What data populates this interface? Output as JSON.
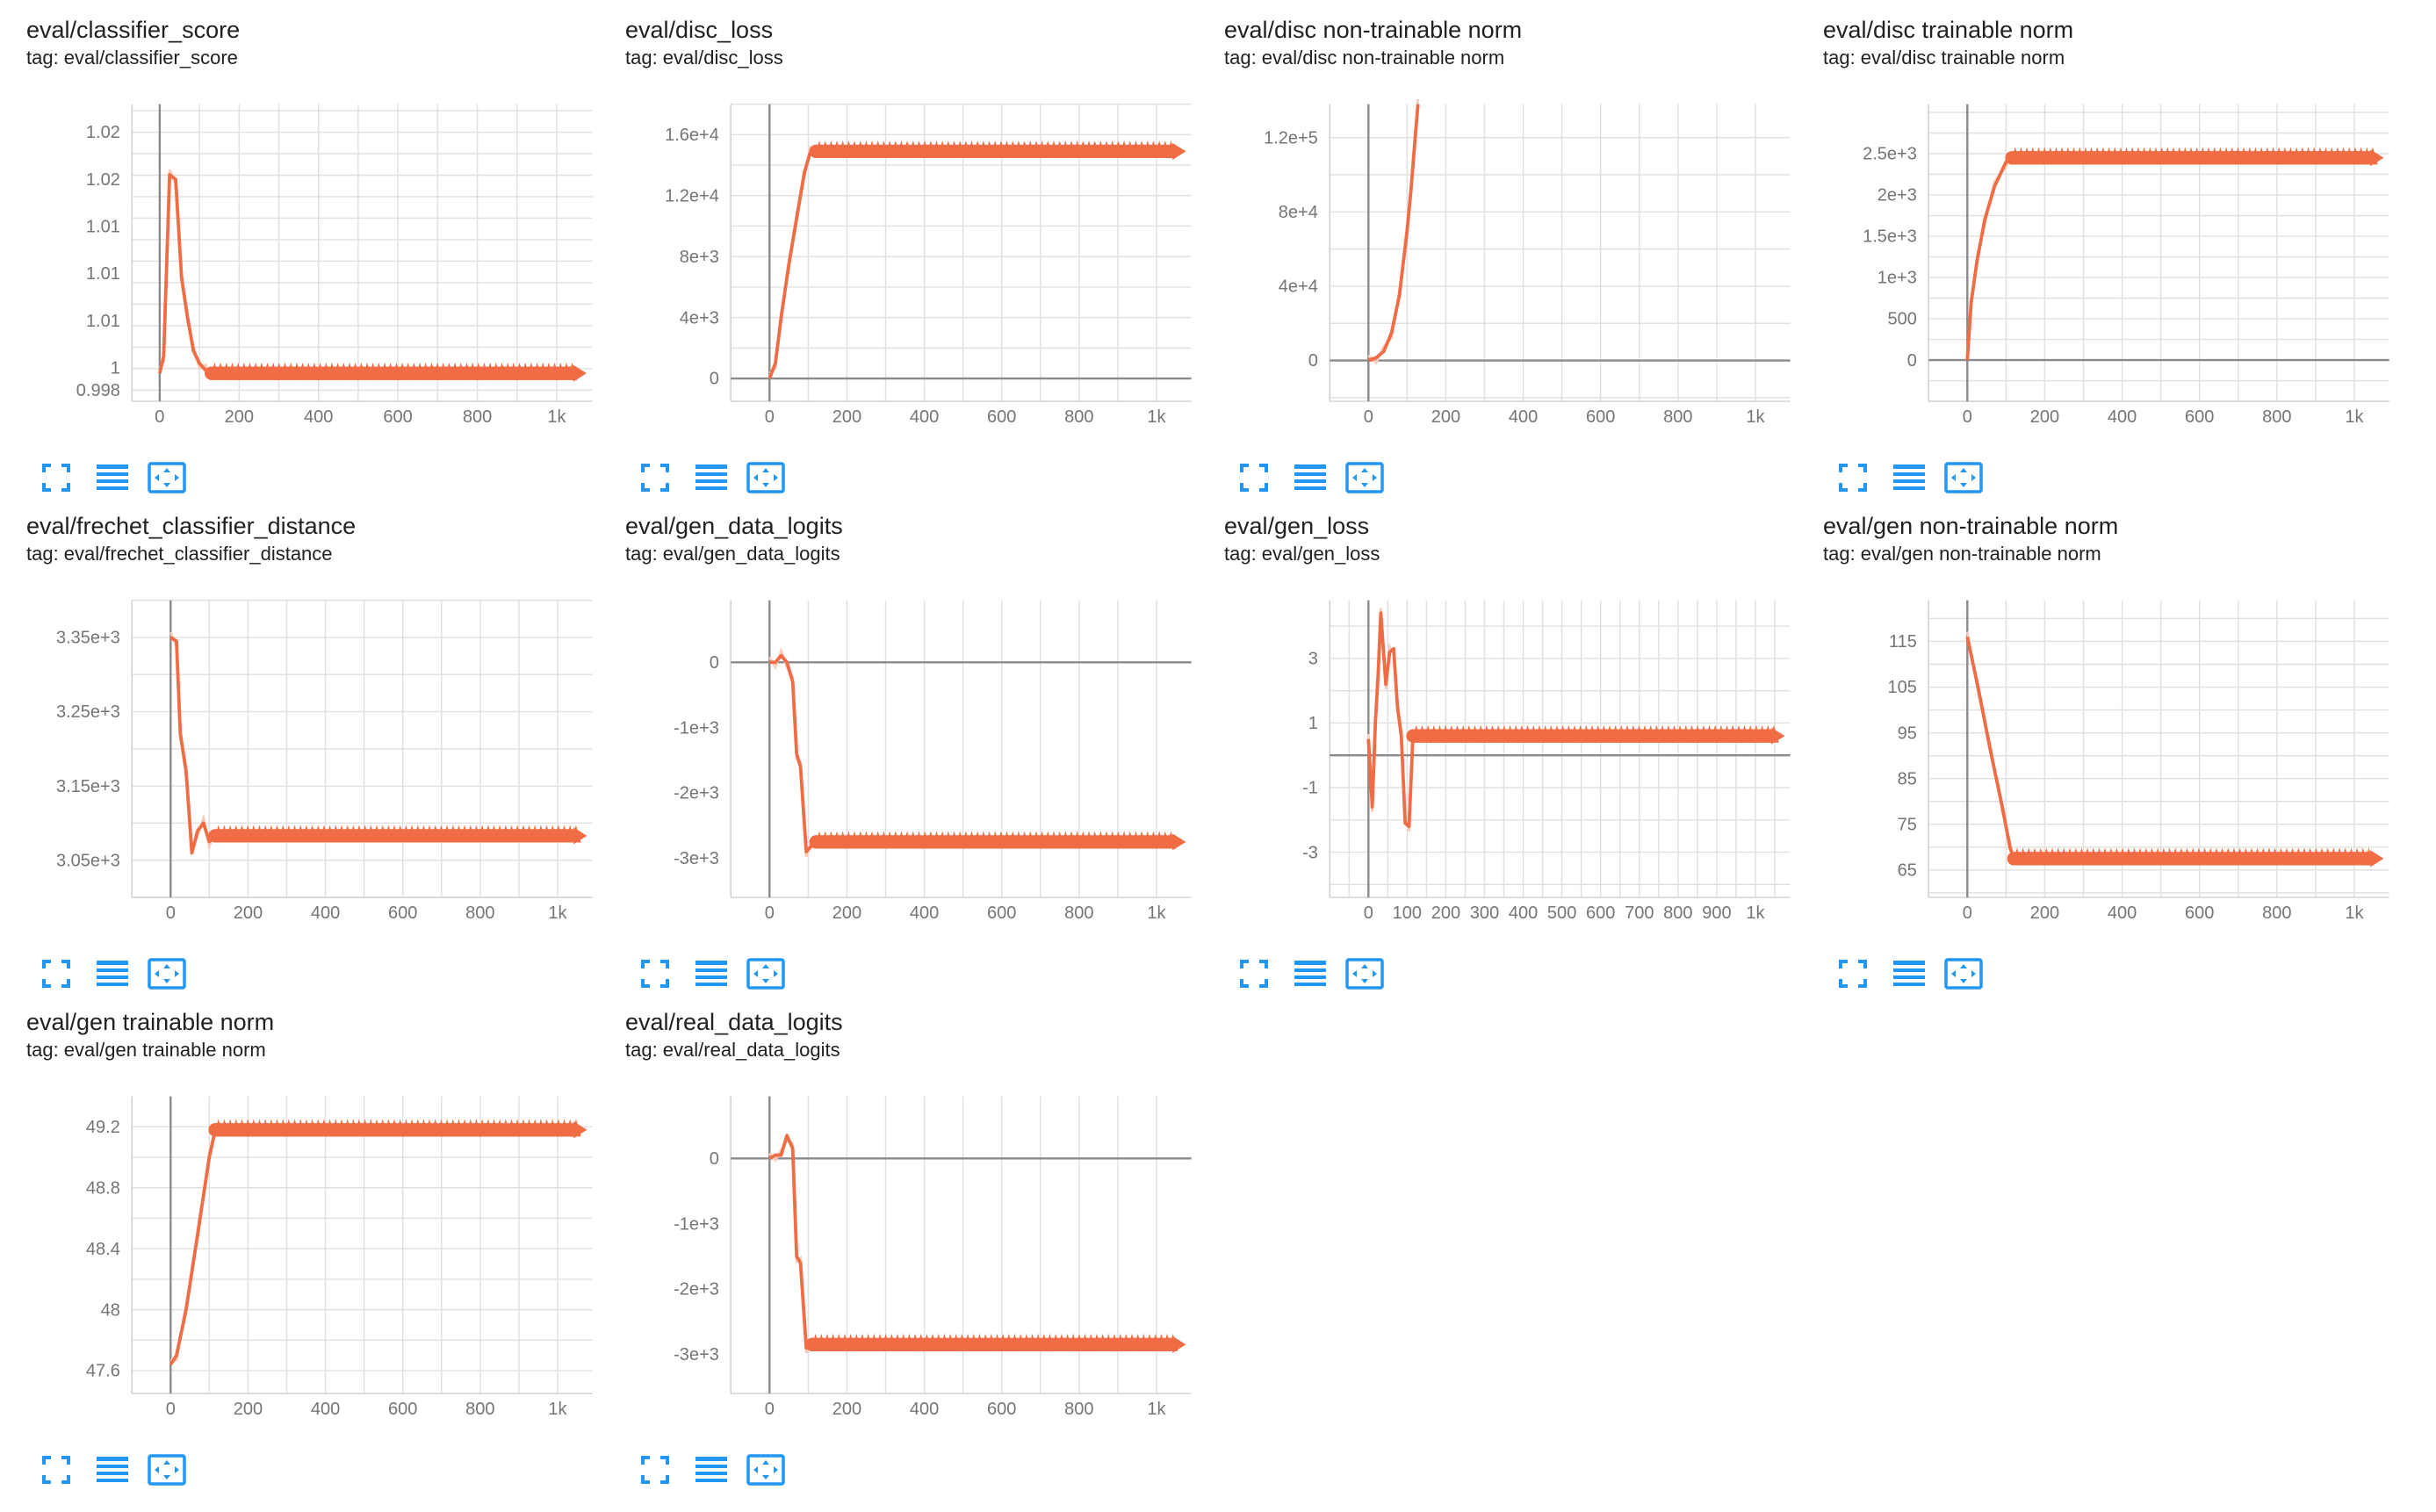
{
  "ui": {
    "accent_color": "#ef6c45",
    "smoothed_raw_color": "#f9cdbd",
    "button_color": "#2196f3",
    "buttons": [
      "fit-domain-icon",
      "data-table-icon",
      "zoom-extents-icon"
    ]
  },
  "cards": [
    {
      "title": "eval/classifier_score",
      "tag": "tag: eval/classifier_score"
    },
    {
      "title": "eval/disc_loss",
      "tag": "tag: eval/disc_loss"
    },
    {
      "title": "eval/disc non-trainable norm",
      "tag": "tag: eval/disc non-trainable norm"
    },
    {
      "title": "eval/disc trainable norm",
      "tag": "tag: eval/disc trainable norm"
    },
    {
      "title": "eval/frechet_classifier_distance",
      "tag": "tag: eval/frechet_classifier_distance"
    },
    {
      "title": "eval/gen_data_logits",
      "tag": "tag: eval/gen_data_logits"
    },
    {
      "title": "eval/gen_loss",
      "tag": "tag: eval/gen_loss"
    },
    {
      "title": "eval/gen non-trainable norm",
      "tag": "tag: eval/gen non-trainable norm"
    },
    {
      "title": "eval/gen trainable norm",
      "tag": "tag: eval/gen trainable norm"
    },
    {
      "title": "eval/real_data_logits",
      "tag": "tag: eval/real_data_logits"
    }
  ],
  "chart_data": [
    {
      "type": "line",
      "title": "eval/classifier_score",
      "x_ticks": [
        "0",
        "200",
        "400",
        "600",
        "800",
        "1k"
      ],
      "y_ticks": [
        "0.998",
        "1",
        "1.01",
        "1.01",
        "1.01",
        "1.02",
        "1.02"
      ],
      "xlim": [
        -70,
        1090
      ],
      "ylim": [
        0.997,
        1.0235
      ],
      "y_tick_values": [
        0.998,
        1.0,
        1.0042,
        1.0084,
        1.0126,
        1.0168,
        1.021
      ],
      "grid": true,
      "series": [
        {
          "x": [
            0,
            10,
            25,
            40,
            55,
            70,
            85,
            100,
            115,
            130,
            200,
            300,
            400,
            500,
            600,
            700,
            800,
            900,
            1000,
            1050
          ],
          "y": [
            0.9995,
            1.001,
            1.0172,
            1.0168,
            1.008,
            1.0045,
            1.0015,
            1.0004,
            0.9998,
            0.9995,
            0.9995,
            0.9995,
            0.9995,
            0.9995,
            0.9995,
            0.9995,
            0.9995,
            0.9995,
            0.9995,
            0.9995
          ]
        }
      ]
    },
    {
      "type": "line",
      "title": "eval/disc_loss",
      "x_ticks": [
        "0",
        "200",
        "400",
        "600",
        "800",
        "1k"
      ],
      "y_ticks": [
        "0",
        "4e+3",
        "8e+3",
        "1.2e+4",
        "1.6e+4"
      ],
      "xlim": [
        -100,
        1090
      ],
      "ylim": [
        -1500,
        18000
      ],
      "grid": true,
      "series": [
        {
          "x": [
            0,
            15,
            30,
            50,
            70,
            90,
            105,
            120,
            200,
            300,
            400,
            500,
            600,
            700,
            800,
            900,
            1000,
            1050
          ],
          "y": [
            0,
            1000,
            4000,
            7500,
            10500,
            13500,
            14800,
            14900,
            14900,
            14900,
            14900,
            14900,
            14900,
            14900,
            14900,
            14900,
            14900,
            14900
          ]
        }
      ]
    },
    {
      "type": "line",
      "title": "eval/disc non-trainable norm",
      "x_ticks": [
        "0",
        "200",
        "400",
        "600",
        "800",
        "1k"
      ],
      "y_ticks": [
        "0",
        "4e+4",
        "8e+4",
        "1.2e+5"
      ],
      "xlim": [
        -100,
        1090
      ],
      "ylim": [
        -22000,
        138000
      ],
      "grid": true,
      "series": [
        {
          "x": [
            0,
            20,
            40,
            60,
            80,
            100,
            110,
            120,
            128
          ],
          "y": [
            0,
            1500,
            5000,
            15000,
            35000,
            70000,
            92000,
            118000,
            138000
          ]
        }
      ]
    },
    {
      "type": "line",
      "title": "eval/disc trainable norm",
      "x_ticks": [
        "0",
        "200",
        "400",
        "600",
        "800",
        "1k"
      ],
      "y_ticks": [
        "0",
        "500",
        "1e+3",
        "1.5e+3",
        "2e+3",
        "2.5e+3"
      ],
      "xlim": [
        -100,
        1090
      ],
      "ylim": [
        -500,
        3100
      ],
      "grid": true,
      "series": [
        {
          "x": [
            0,
            10,
            25,
            45,
            70,
            100,
            115,
            200,
            300,
            400,
            500,
            600,
            700,
            800,
            900,
            1000,
            1050
          ],
          "y": [
            0,
            700,
            1200,
            1700,
            2100,
            2400,
            2450,
            2450,
            2450,
            2450,
            2450,
            2450,
            2450,
            2450,
            2450,
            2450,
            2450
          ]
        }
      ]
    },
    {
      "type": "line",
      "title": "eval/frechet_classifier_distance",
      "x_ticks": [
        "0",
        "200",
        "400",
        "600",
        "800",
        "1k"
      ],
      "y_ticks": [
        "3.05e+3",
        "3.15e+3",
        "3.25e+3",
        "3.35e+3"
      ],
      "xlim": [
        -100,
        1090
      ],
      "ylim": [
        3000,
        3400
      ],
      "grid": true,
      "series": [
        {
          "x": [
            0,
            15,
            25,
            40,
            55,
            70,
            85,
            100,
            115,
            200,
            300,
            400,
            500,
            600,
            700,
            800,
            900,
            1000,
            1050
          ],
          "y": [
            3350,
            3345,
            3220,
            3170,
            3060,
            3090,
            3100,
            3075,
            3083,
            3083,
            3083,
            3083,
            3083,
            3083,
            3083,
            3083,
            3083,
            3083,
            3083
          ]
        }
      ]
    },
    {
      "type": "line",
      "title": "eval/gen_data_logits",
      "x_ticks": [
        "0",
        "200",
        "400",
        "600",
        "800",
        "1k"
      ],
      "y_ticks": [
        "0",
        "-1e+3",
        "-2e+3",
        "-3e+3"
      ],
      "xlim": [
        -100,
        1090
      ],
      "ylim": [
        -3600,
        950
      ],
      "grid": true,
      "series": [
        {
          "x": [
            0,
            15,
            30,
            45,
            60,
            70,
            80,
            95,
            110,
            120,
            200,
            300,
            400,
            500,
            600,
            700,
            800,
            900,
            1000,
            1050
          ],
          "y": [
            0,
            0,
            100,
            0,
            -300,
            -1400,
            -1600,
            -2900,
            -2800,
            -2750,
            -2750,
            -2750,
            -2750,
            -2750,
            -2750,
            -2750,
            -2750,
            -2750,
            -2750,
            -2750
          ]
        }
      ]
    },
    {
      "type": "line",
      "title": "eval/gen_loss",
      "x_ticks": [
        "0",
        "100",
        "200",
        "300",
        "400",
        "500",
        "600",
        "700",
        "800",
        "900",
        "1k"
      ],
      "y_ticks": [
        "-3",
        "-1",
        "1",
        "3"
      ],
      "xlim": [
        -100,
        1090
      ],
      "ylim": [
        -4.4,
        4.8
      ],
      "grid": true,
      "series": [
        {
          "x": [
            0,
            10,
            18,
            25,
            32,
            45,
            55,
            65,
            75,
            85,
            95,
            105,
            115,
            120,
            200,
            300,
            400,
            500,
            600,
            700,
            800,
            900,
            1000,
            1050
          ],
          "y": [
            0.5,
            -1.6,
            1.0,
            2.5,
            4.4,
            2.2,
            3.2,
            3.3,
            1.5,
            0.6,
            -2.1,
            -2.2,
            0.6,
            0.6,
            0.6,
            0.6,
            0.6,
            0.6,
            0.6,
            0.6,
            0.6,
            0.6,
            0.6,
            0.6
          ]
        }
      ]
    },
    {
      "type": "line",
      "title": "eval/gen non-trainable norm",
      "x_ticks": [
        "0",
        "200",
        "400",
        "600",
        "800",
        "1k"
      ],
      "y_ticks": [
        "65",
        "75",
        "85",
        "95",
        "105",
        "115"
      ],
      "xlim": [
        -100,
        1090
      ],
      "ylim": [
        59,
        124
      ],
      "grid": true,
      "series": [
        {
          "x": [
            0,
            30,
            60,
            90,
            110,
            120,
            200,
            300,
            400,
            500,
            600,
            700,
            800,
            900,
            1000,
            1050
          ],
          "y": [
            116,
            104,
            91,
            79,
            70,
            67.5,
            67.5,
            67.5,
            67.5,
            67.5,
            67.5,
            67.5,
            67.5,
            67.5,
            67.5,
            67.5
          ]
        }
      ]
    },
    {
      "type": "line",
      "title": "eval/gen trainable norm",
      "x_ticks": [
        "0",
        "200",
        "400",
        "600",
        "800",
        "1k"
      ],
      "y_ticks": [
        "47.6",
        "48",
        "48.4",
        "48.8",
        "49.2"
      ],
      "xlim": [
        -100,
        1090
      ],
      "ylim": [
        47.45,
        49.4
      ],
      "grid": true,
      "series": [
        {
          "x": [
            0,
            15,
            40,
            70,
            100,
            115,
            200,
            300,
            400,
            500,
            600,
            700,
            800,
            900,
            1000,
            1050
          ],
          "y": [
            47.64,
            47.7,
            48.0,
            48.5,
            49.0,
            49.18,
            49.18,
            49.18,
            49.18,
            49.18,
            49.18,
            49.18,
            49.18,
            49.18,
            49.18,
            49.18
          ]
        }
      ]
    },
    {
      "type": "line",
      "title": "eval/real_data_logits",
      "x_ticks": [
        "0",
        "200",
        "400",
        "600",
        "800",
        "1k"
      ],
      "y_ticks": [
        "0",
        "-1e+3",
        "-2e+3",
        "-3e+3"
      ],
      "xlim": [
        -100,
        1090
      ],
      "ylim": [
        -3600,
        950
      ],
      "grid": true,
      "series": [
        {
          "x": [
            0,
            15,
            30,
            45,
            60,
            70,
            80,
            95,
            110,
            120,
            200,
            300,
            400,
            500,
            600,
            700,
            800,
            900,
            1000,
            1050
          ],
          "y": [
            0,
            50,
            50,
            350,
            150,
            -1500,
            -1600,
            -2900,
            -2850,
            -2850,
            -2850,
            -2850,
            -2850,
            -2850,
            -2850,
            -2850,
            -2850,
            -2850,
            -2850,
            -2850
          ]
        }
      ]
    }
  ]
}
